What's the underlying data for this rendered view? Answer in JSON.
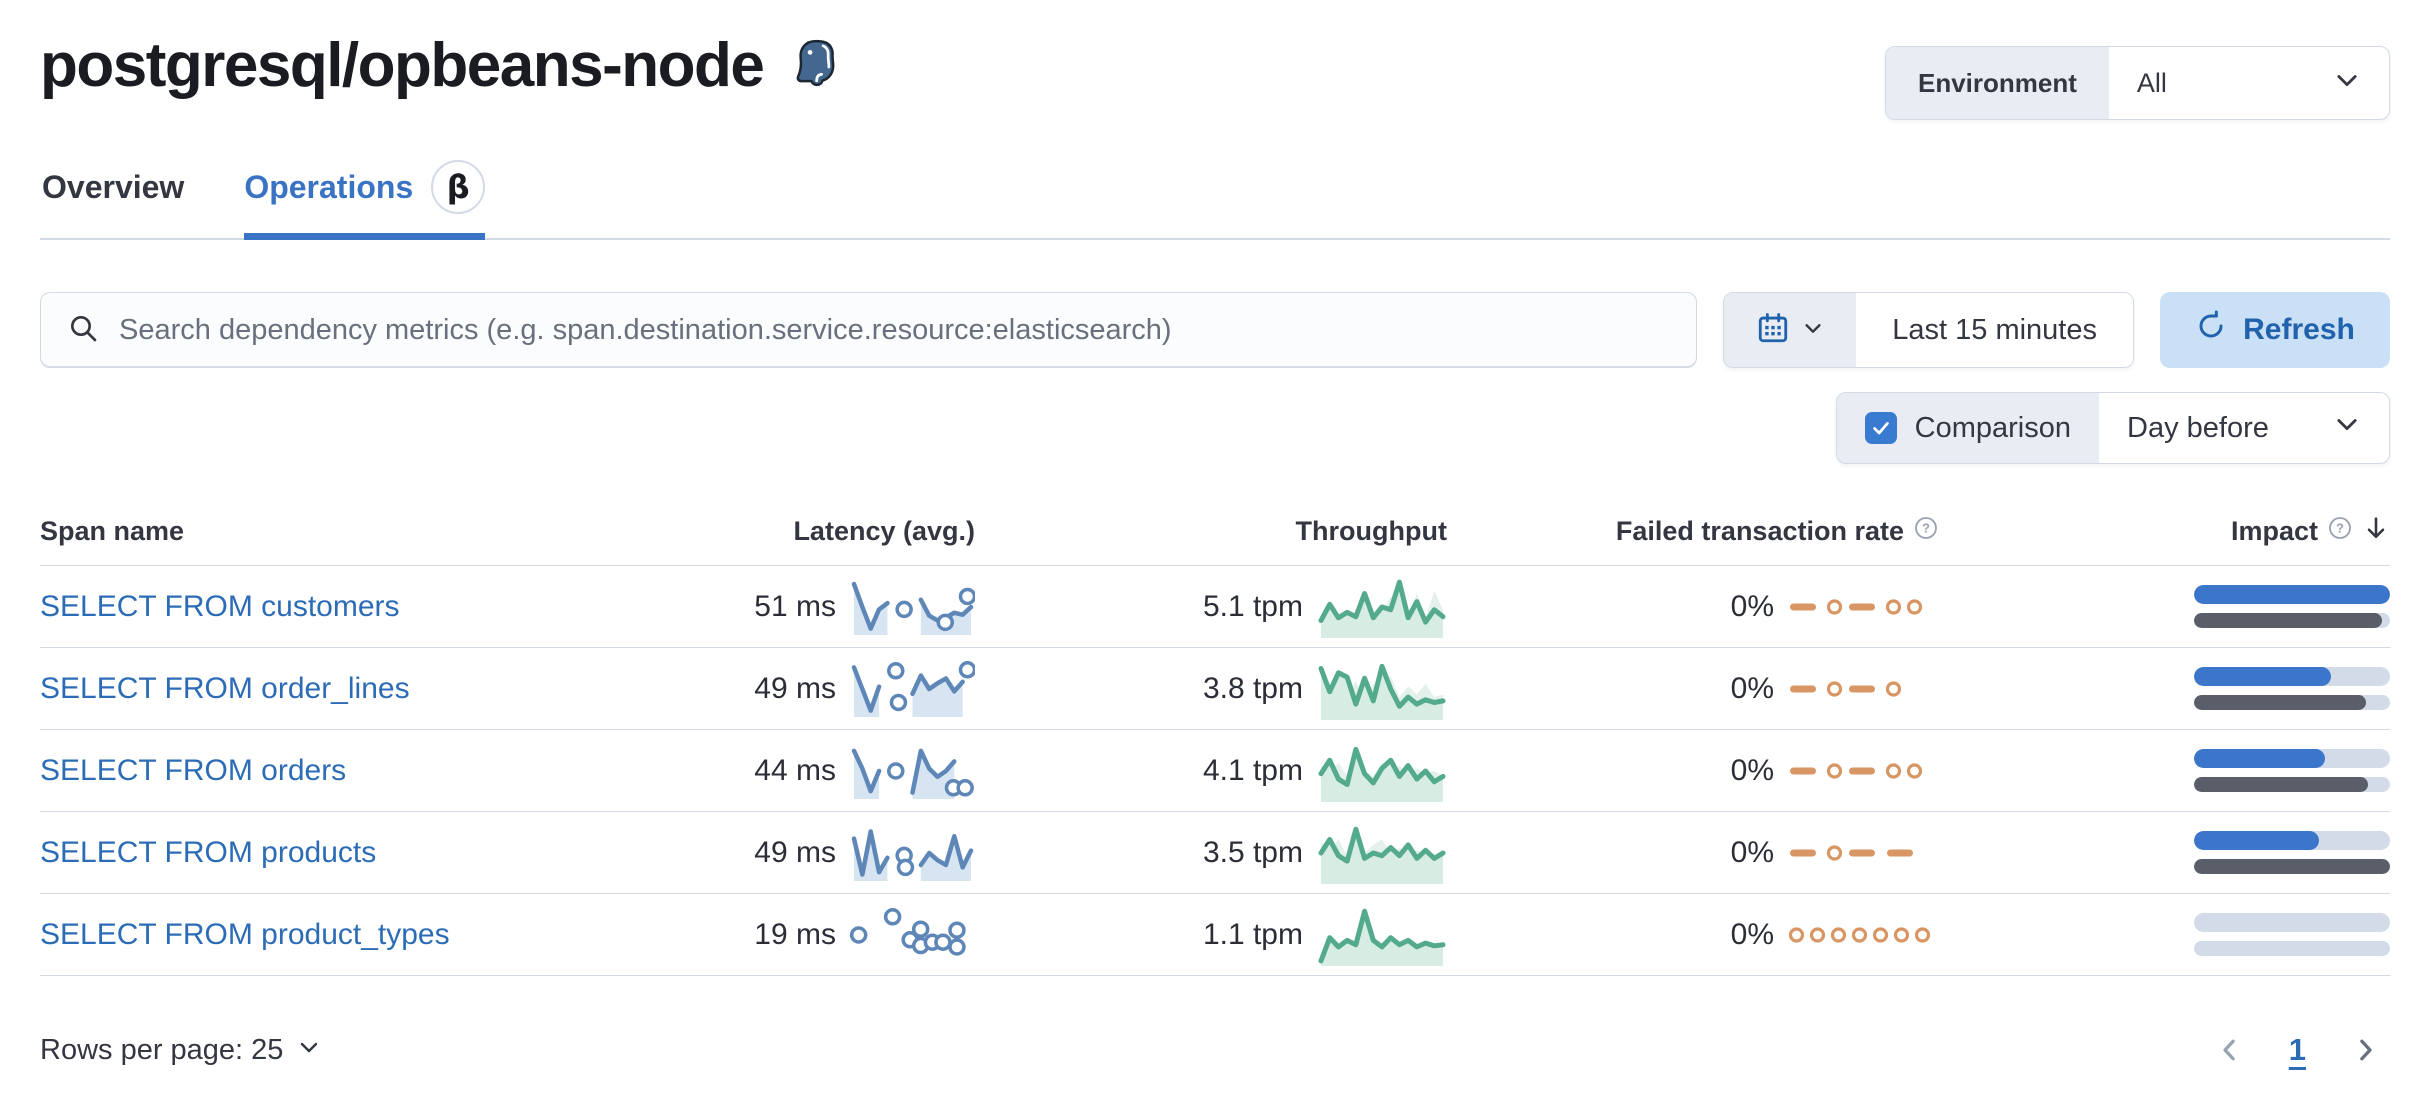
{
  "header": {
    "title": "postgresql/opbeans-node",
    "env_label": "Environment",
    "env_value": "All"
  },
  "tabs": [
    {
      "label": "Overview",
      "active": false
    },
    {
      "label": "Operations",
      "active": true,
      "badge": "β"
    }
  ],
  "toolbar": {
    "search_placeholder": "Search dependency metrics (e.g. span.destination.service.resource:elasticsearch)",
    "time_range": "Last 15 minutes",
    "refresh_label": "Refresh",
    "comparison_label": "Comparison",
    "comparison_value": "Day before"
  },
  "table": {
    "columns": {
      "span_name": "Span name",
      "latency": "Latency (avg.)",
      "throughput": "Throughput",
      "failed_rate": "Failed transaction rate",
      "impact": "Impact"
    },
    "help_glyph": "?",
    "rows": [
      {
        "span_name": "SELECT FROM customers",
        "latency": "51 ms",
        "throughput": "5.1 tpm",
        "failed_rate": "0%",
        "impact": {
          "current": 1.0,
          "previous": 0.96
        },
        "latency_spark": {
          "type": "area",
          "style": "latency",
          "points": [
            0.02,
            0.5,
            0.95,
            0.55,
            0.42,
            null,
            0.55,
            null,
            0.35,
            0.68,
            0.78,
            0.72,
            0.62,
            0.66,
            0.5
          ],
          "dots": [
            [
              0.97,
              0.28
            ],
            [
              0.78,
              0.82
            ]
          ]
        },
        "throughput_spark": {
          "type": "area",
          "style": "throughput",
          "points": [
            0.75,
            0.45,
            0.7,
            0.6,
            0.68,
            0.25,
            0.7,
            0.5,
            0.55,
            0.04,
            0.7,
            0.4,
            0.78,
            0.55,
            0.68
          ],
          "comp": [
            0.8,
            0.65,
            0.72,
            0.55,
            0.7,
            0.45,
            0.6,
            0.62,
            0.3,
            0.5,
            0.68,
            0.25,
            0.72,
            0.2,
            0.55
          ]
        },
        "failed_spark": {
          "type": "pattern",
          "style": "failed",
          "items": [
            "dash",
            "dot",
            "dash",
            "dot",
            "dot"
          ]
        }
      },
      {
        "span_name": "SELECT FROM order_lines",
        "latency": "49 ms",
        "throughput": "3.8 tpm",
        "failed_rate": "0%",
        "impact": {
          "current": 0.7,
          "previous": 0.88
        },
        "latency_spark": {
          "type": "area",
          "style": "latency",
          "points": [
            0.05,
            0.5,
            0.95,
            0.45,
            null,
            0.12,
            null,
            0.6,
            0.22,
            0.5,
            0.38,
            0.28,
            0.55,
            0.35,
            null
          ],
          "dots": [
            [
              0.38,
              0.78
            ],
            [
              0.97,
              0.1
            ]
          ]
        },
        "throughput_spark": {
          "type": "area",
          "style": "throughput",
          "points": [
            0.12,
            0.55,
            0.2,
            0.28,
            0.78,
            0.3,
            0.72,
            0.08,
            0.5,
            0.82,
            0.65,
            0.78,
            0.7,
            0.75,
            0.72
          ],
          "comp": [
            0.45,
            0.65,
            0.5,
            0.6,
            0.35,
            0.7,
            0.4,
            0.55,
            0.25,
            0.65,
            0.45,
            0.6,
            0.4,
            0.65,
            0.6
          ]
        },
        "failed_spark": {
          "type": "pattern",
          "style": "failed",
          "items": [
            "dash",
            "dot",
            "dash",
            "dot"
          ]
        }
      },
      {
        "span_name": "SELECT FROM orders",
        "latency": "44 ms",
        "throughput": "4.1 tpm",
        "failed_rate": "0%",
        "impact": {
          "current": 0.67,
          "previous": 0.89
        },
        "latency_spark": {
          "type": "area",
          "style": "latency",
          "points": [
            0.08,
            0.45,
            0.92,
            0.5,
            null,
            0.5,
            null,
            0.95,
            0.08,
            0.45,
            0.62,
            0.5,
            0.3,
            null,
            null
          ],
          "dots": [
            [
              0.85,
              0.85
            ],
            [
              0.95,
              0.85
            ]
          ]
        },
        "throughput_spark": {
          "type": "area",
          "style": "throughput",
          "points": [
            0.55,
            0.3,
            0.65,
            0.75,
            0.1,
            0.55,
            0.72,
            0.45,
            0.3,
            0.6,
            0.4,
            0.65,
            0.5,
            0.7,
            0.6
          ],
          "comp": [
            0.4,
            0.55,
            0.35,
            0.6,
            0.05,
            0.5,
            0.6,
            0.35,
            0.55,
            0.4,
            0.6,
            0.45,
            0.55,
            0.5,
            0.6
          ]
        },
        "failed_spark": {
          "type": "pattern",
          "style": "failed",
          "items": [
            "dash",
            "dot",
            "dash",
            "dot",
            "dot"
          ]
        }
      },
      {
        "span_name": "SELECT FROM products",
        "latency": "49 ms",
        "throughput": "3.5 tpm",
        "failed_rate": "0%",
        "impact": {
          "current": 0.64,
          "previous": 1.0
        },
        "latency_spark": {
          "type": "area",
          "style": "latency",
          "points": [
            0.2,
            0.95,
            0.05,
            0.9,
            0.6,
            null,
            0.55,
            null,
            0.75,
            0.5,
            0.65,
            0.75,
            0.15,
            0.8,
            0.45
          ],
          "dots": [
            [
              0.44,
              0.8
            ]
          ]
        },
        "throughput_spark": {
          "type": "area",
          "style": "throughput",
          "points": [
            0.5,
            0.25,
            0.55,
            0.65,
            0.06,
            0.6,
            0.5,
            0.55,
            0.4,
            0.55,
            0.35,
            0.6,
            0.45,
            0.6,
            0.5
          ],
          "comp": [
            0.3,
            0.45,
            0.25,
            0.55,
            0.2,
            0.5,
            0.35,
            0.25,
            0.5,
            0.4,
            0.55,
            0.45,
            0.5,
            0.55,
            0.5
          ]
        },
        "failed_spark": {
          "type": "pattern",
          "style": "failed",
          "items": [
            "dash",
            "dot",
            "dash",
            "dash"
          ]
        }
      },
      {
        "span_name": "SELECT FROM product_types",
        "latency": "19 ms",
        "throughput": "1.1 tpm",
        "failed_rate": "0%",
        "impact": {
          "current": 0.0,
          "previous": 0.0
        },
        "latency_spark": {
          "type": "area",
          "style": "latency",
          "points": [
            null,
            null,
            null,
            null,
            null,
            null,
            null,
            null,
            null,
            null,
            null,
            null,
            null,
            null,
            null
          ],
          "dots": [
            [
              0.04,
              0.5
            ],
            [
              0.33,
              0.12
            ],
            [
              0.48,
              0.6
            ],
            [
              0.57,
              0.38
            ],
            [
              0.57,
              0.72
            ],
            [
              0.67,
              0.65
            ],
            [
              0.76,
              0.65
            ],
            [
              0.88,
              0.4
            ],
            [
              0.88,
              0.75
            ]
          ]
        },
        "throughput_spark": {
          "type": "area",
          "style": "throughput",
          "points": [
            0.98,
            0.55,
            0.72,
            0.6,
            0.68,
            0.06,
            0.6,
            0.72,
            0.55,
            0.68,
            0.6,
            0.72,
            0.65,
            0.7,
            0.68
          ],
          "comp": [
            0.95,
            0.8,
            0.88,
            0.78,
            0.82,
            0.45,
            0.8,
            0.85,
            0.78,
            0.85,
            0.8,
            0.86,
            0.82,
            0.86,
            0.84
          ]
        },
        "failed_spark": {
          "type": "pattern",
          "style": "failed",
          "items": [
            "dot",
            "dot",
            "dot",
            "dot",
            "dot",
            "dot",
            "dot"
          ]
        }
      }
    ]
  },
  "footer": {
    "rows_per_page_label": "Rows per page: 25",
    "page": "1"
  },
  "sparkline_styles": {
    "latency": {
      "color": "#5e87b8",
      "fill": "#d7e4f1"
    },
    "throughput": {
      "color": "#54aa8c",
      "fill": "#d7ece3",
      "comp_fill": "#e4f1ea"
    },
    "failed": {
      "color": "#d79663"
    }
  },
  "colors": {
    "accent_blue": "#3b73c4",
    "link_blue": "#2c6cb7",
    "refresh_blue": "#2062ab",
    "refresh_bg": "#c9e0f6",
    "checkbox_blue": "#3a7bd2",
    "impact_current": "#3c76ca",
    "impact_previous": "#595e68",
    "impact_track": "#d3dbe9",
    "border": "#d3dae6",
    "prepend_bg": "#e9edf3"
  }
}
